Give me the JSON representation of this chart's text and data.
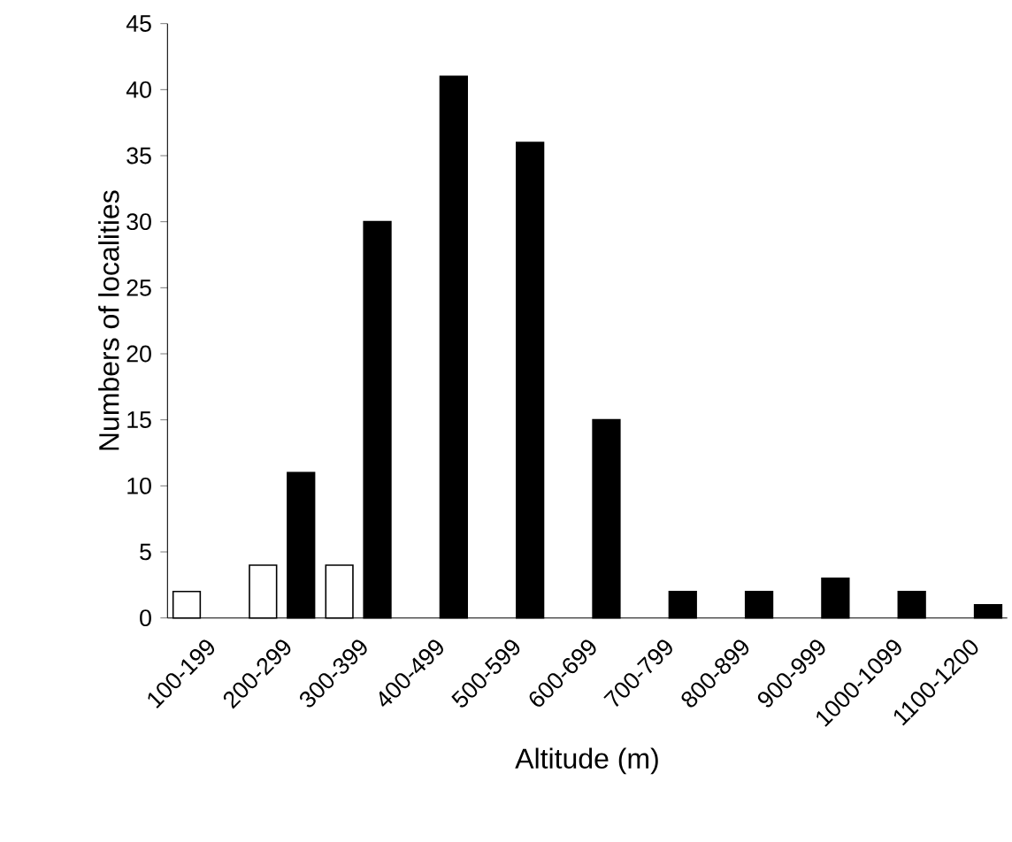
{
  "chart_data": {
    "type": "bar",
    "xlabel": "Altitude (m)",
    "ylabel": "Numbers of localities",
    "categories": [
      "100-199",
      "200-299",
      "300-399",
      "400-499",
      "500-599",
      "600-699",
      "700-799",
      "800-899",
      "900-999",
      "1000-1099",
      "1100-1200"
    ],
    "series": [
      {
        "color": "#ffffff",
        "values": [
          2,
          4,
          4,
          null,
          null,
          null,
          null,
          null,
          null,
          null,
          null
        ]
      },
      {
        "color": "#000000",
        "values": [
          null,
          11,
          30,
          41,
          36,
          15,
          2,
          2,
          3,
          2,
          1
        ]
      }
    ],
    "ylim": [
      0,
      45
    ],
    "yticks": [
      0,
      5,
      10,
      15,
      20,
      25,
      30,
      35,
      40,
      45
    ],
    "grid": false
  }
}
